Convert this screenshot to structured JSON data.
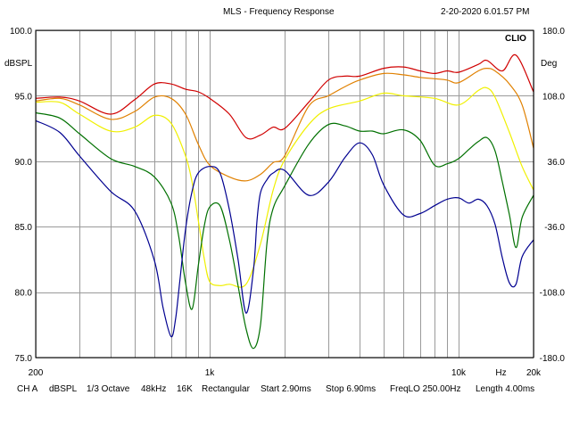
{
  "header": {
    "title": "MLS - Frequency Response",
    "timestamp": "2-20-2020 6.01.57 PM",
    "brand": "CLIO"
  },
  "footer": {
    "channel": "CH A",
    "units": "dBSPL",
    "smoothing": "1/3 Octave",
    "sample_rate": "48kHz",
    "size": "16K",
    "window": "Rectangular",
    "start": "Start 2.90ms",
    "stop": "Stop 6.90ms",
    "freqlo": "FreqLO 250.00Hz",
    "length": "Length 4.00ms"
  },
  "colors": {
    "series_red": "#d00000",
    "series_orange": "#e08000",
    "series_yellow": "#f0f000",
    "series_green": "#007000",
    "series_blue": "#000090"
  },
  "chart_data": {
    "type": "line",
    "title": "MLS - Frequency Response",
    "xlabel": "Hz",
    "ylabel": "dBSPL",
    "y2label": "Deg",
    "xscale": "log",
    "xlim": [
      200,
      20000
    ],
    "ylim": [
      75,
      100
    ],
    "y2lim": [
      -180,
      180
    ],
    "grid": true,
    "x_gridlines": [
      200,
      300,
      400,
      500,
      600,
      700,
      800,
      900,
      1000,
      2000,
      3000,
      4000,
      5000,
      6000,
      7000,
      8000,
      9000,
      10000,
      20000
    ],
    "x_ticks": [
      {
        "value": 200,
        "label": "200"
      },
      {
        "value": 1000,
        "label": "1k"
      },
      {
        "value": 10000,
        "label": "10k"
      },
      {
        "value": 20000,
        "label": "20k"
      }
    ],
    "x_unit_label": {
      "value": 14800,
      "label": "Hz"
    },
    "y_ticks": [
      {
        "value": 100,
        "label": "100.0"
      },
      {
        "value": 95,
        "label": "95.0"
      },
      {
        "value": 90,
        "label": "90.0"
      },
      {
        "value": 85,
        "label": "85.0"
      },
      {
        "value": 80,
        "label": "80.0"
      },
      {
        "value": 75,
        "label": "75.0"
      }
    ],
    "y2_ticks": [
      {
        "value": 180,
        "label": "180.0"
      },
      {
        "value": 108,
        "label": "108.0"
      },
      {
        "value": 36,
        "label": "36.0"
      },
      {
        "value": -36,
        "label": "-36.0"
      },
      {
        "value": -108,
        "label": "-108.0"
      },
      {
        "value": -180,
        "label": "-180.0"
      }
    ],
    "series": [
      {
        "name": "red",
        "color": "#d00000",
        "x": [
          200,
          250,
          300,
          400,
          500,
          600,
          700,
          800,
          900,
          1000,
          1200,
          1400,
          1600,
          1800,
          2000,
          2500,
          3000,
          3500,
          4000,
          5000,
          6000,
          7000,
          8000,
          9000,
          10000,
          12000,
          13000,
          15000,
          17000,
          20000
        ],
        "y": [
          94.8,
          94.9,
          94.6,
          93.6,
          94.7,
          95.9,
          95.9,
          95.5,
          95.3,
          94.8,
          93.6,
          91.8,
          92.0,
          92.6,
          92.5,
          94.5,
          96.2,
          96.5,
          96.5,
          97.1,
          97.2,
          96.9,
          96.7,
          96.9,
          96.8,
          97.4,
          97.7,
          96.9,
          98.1,
          95.3
        ]
      },
      {
        "name": "orange",
        "color": "#e08000",
        "x": [
          200,
          250,
          300,
          400,
          500,
          600,
          700,
          800,
          900,
          1000,
          1200,
          1400,
          1600,
          1800,
          2000,
          2500,
          3000,
          3500,
          4000,
          5000,
          6000,
          7000,
          8000,
          9000,
          10000,
          12000,
          13000,
          14000,
          16000,
          18000,
          20000
        ],
        "y": [
          94.6,
          94.8,
          94.3,
          93.2,
          93.8,
          94.9,
          94.8,
          93.6,
          91.3,
          89.7,
          88.8,
          88.5,
          89.0,
          89.9,
          90.4,
          94.2,
          95.0,
          95.7,
          96.2,
          96.7,
          96.6,
          96.4,
          96.3,
          96.2,
          96.0,
          96.9,
          97.1,
          96.9,
          95.9,
          94.3,
          91.0
        ]
      },
      {
        "name": "yellow",
        "color": "#f0f000",
        "x": [
          200,
          250,
          300,
          400,
          500,
          600,
          700,
          800,
          850,
          900,
          950,
          1000,
          1100,
          1200,
          1400,
          1600,
          1800,
          2000,
          2500,
          3000,
          4000,
          5000,
          6000,
          8000,
          10000,
          12000,
          13000,
          14000,
          16000,
          18000,
          20000
        ],
        "y": [
          94.5,
          94.5,
          93.6,
          92.3,
          92.6,
          93.5,
          92.9,
          90.4,
          88.4,
          85.5,
          82.6,
          80.8,
          80.5,
          80.6,
          80.6,
          83.7,
          87.8,
          90.1,
          92.8,
          94.0,
          94.6,
          95.2,
          95.0,
          94.8,
          94.3,
          95.4,
          95.6,
          94.9,
          92.2,
          89.6,
          87.8
        ]
      },
      {
        "name": "green",
        "color": "#007000",
        "x": [
          200,
          250,
          300,
          400,
          500,
          600,
          700,
          750,
          800,
          850,
          900,
          950,
          1000,
          1100,
          1200,
          1300,
          1400,
          1500,
          1600,
          1700,
          1800,
          2000,
          2500,
          3000,
          3500,
          4000,
          4500,
          5000,
          6000,
          7000,
          8000,
          9000,
          10000,
          11000,
          12000,
          13000,
          14000,
          15000,
          16000,
          17000,
          18000,
          20000
        ],
        "y": [
          93.7,
          93.3,
          92.1,
          90.2,
          89.6,
          88.8,
          86.8,
          84.3,
          80.7,
          78.7,
          82.0,
          85.0,
          86.5,
          86.6,
          84.0,
          80.5,
          77.2,
          75.7,
          77.5,
          83.8,
          86.4,
          88.1,
          91.3,
          92.8,
          92.7,
          92.3,
          92.3,
          92.1,
          92.4,
          91.6,
          89.7,
          89.8,
          90.2,
          90.9,
          91.5,
          91.8,
          90.8,
          88.4,
          85.9,
          83.4,
          85.7,
          87.4
        ]
      },
      {
        "name": "blue",
        "color": "#000090",
        "x": [
          200,
          250,
          300,
          400,
          500,
          600,
          650,
          700,
          730,
          760,
          800,
          850,
          900,
          1000,
          1100,
          1200,
          1300,
          1400,
          1500,
          1550,
          1600,
          1700,
          1800,
          2000,
          2500,
          3000,
          3500,
          4000,
          4500,
          5000,
          6000,
          7000,
          8000,
          9000,
          10000,
          11000,
          12000,
          13000,
          14000,
          15000,
          16000,
          17000,
          18000,
          20000
        ],
        "y": [
          93.1,
          92.2,
          90.4,
          87.7,
          86.2,
          82.4,
          78.8,
          76.6,
          78.0,
          81.0,
          84.8,
          87.7,
          89.1,
          89.6,
          89.1,
          86.3,
          82.5,
          78.4,
          81.7,
          85.5,
          87.6,
          88.6,
          89.1,
          89.3,
          87.4,
          88.4,
          90.3,
          91.4,
          90.5,
          88.2,
          85.9,
          86.0,
          86.6,
          87.1,
          87.2,
          86.8,
          87.1,
          86.6,
          85.2,
          82.6,
          80.7,
          80.6,
          82.7,
          84.0
        ]
      }
    ]
  }
}
